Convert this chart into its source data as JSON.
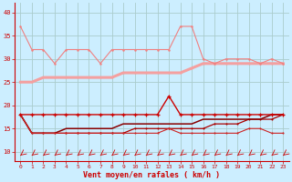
{
  "x": [
    0,
    1,
    2,
    3,
    4,
    5,
    6,
    7,
    8,
    9,
    10,
    11,
    12,
    13,
    14,
    15,
    16,
    17,
    18,
    19,
    20,
    21,
    22,
    23
  ],
  "series1": [
    37,
    32,
    32,
    29,
    32,
    32,
    32,
    29,
    32,
    32,
    32,
    32,
    32,
    32,
    37,
    37,
    30,
    29,
    30,
    30,
    30,
    29,
    30,
    29
  ],
  "series2": [
    25,
    25,
    26,
    26,
    26,
    26,
    26,
    26,
    26,
    27,
    27,
    27,
    27,
    27,
    27,
    28,
    29,
    29,
    29,
    29,
    29,
    29,
    29,
    29
  ],
  "series3": [
    18,
    18,
    18,
    18,
    18,
    18,
    18,
    18,
    18,
    18,
    18,
    18,
    18,
    22,
    18,
    18,
    18,
    18,
    18,
    18,
    18,
    18,
    18,
    18
  ],
  "series4": [
    18,
    14,
    14,
    14,
    14,
    14,
    14,
    14,
    14,
    14,
    15,
    15,
    15,
    15,
    15,
    15,
    15,
    16,
    16,
    16,
    17,
    17,
    17,
    18
  ],
  "series5": [
    18,
    14,
    14,
    14,
    15,
    15,
    15,
    15,
    15,
    16,
    16,
    16,
    16,
    16,
    16,
    16,
    17,
    17,
    17,
    17,
    17,
    17,
    18,
    18
  ],
  "series6": [
    18,
    14,
    14,
    14,
    14,
    14,
    14,
    14,
    14,
    14,
    14,
    14,
    14,
    15,
    14,
    14,
    14,
    14,
    14,
    14,
    15,
    15,
    14,
    14
  ],
  "color1": "#f08080",
  "color2": "#f4a0a0",
  "color3": "#cc0000",
  "color4": "#aa0000",
  "color5": "#880000",
  "color6": "#cc2222",
  "bg_color": "#cceeff",
  "grid_color": "#aacccc",
  "xlabel": "Vent moyen/en rafales ( km/h )",
  "xlabel_color": "#cc0000",
  "tick_color": "#cc0000",
  "ylim": [
    8,
    42
  ],
  "yticks": [
    10,
    15,
    20,
    25,
    30,
    35,
    40
  ],
  "xticks": [
    0,
    1,
    2,
    3,
    4,
    5,
    6,
    7,
    8,
    9,
    10,
    11,
    12,
    13,
    14,
    15,
    16,
    17,
    18,
    19,
    20,
    21,
    22,
    23
  ]
}
